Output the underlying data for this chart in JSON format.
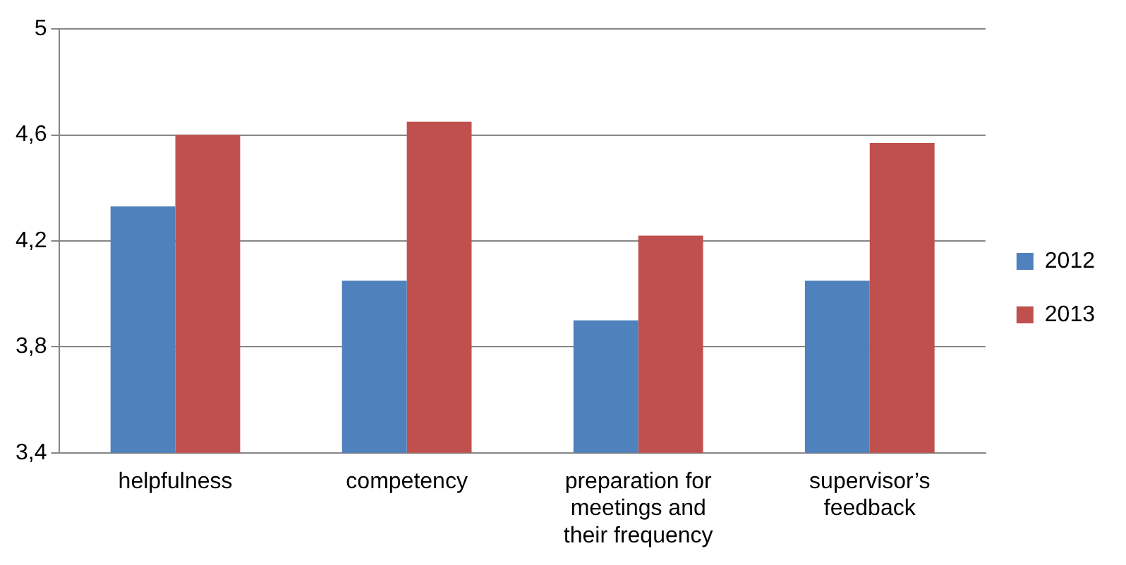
{
  "chart_data": {
    "type": "bar",
    "categories": [
      "helpfulness",
      "competency",
      "preparation for meetings and their frequency",
      "supervisor’s feedback"
    ],
    "series": [
      {
        "name": "2012",
        "color": "#4f81bd",
        "values": [
          4.33,
          4.05,
          3.9,
          4.05
        ]
      },
      {
        "name": "2013",
        "color": "#c0504d",
        "values": [
          4.6,
          4.65,
          4.22,
          4.57
        ]
      }
    ],
    "ylim": [
      3.4,
      5
    ],
    "yticks": [
      {
        "value": 3.4,
        "label": "3,4"
      },
      {
        "value": 3.8,
        "label": "3,8"
      },
      {
        "value": 4.2,
        "label": "4,2"
      },
      {
        "value": 4.6,
        "label": "4,6"
      },
      {
        "value": 5,
        "label": "5"
      }
    ],
    "grid": "y",
    "legend": "right"
  }
}
